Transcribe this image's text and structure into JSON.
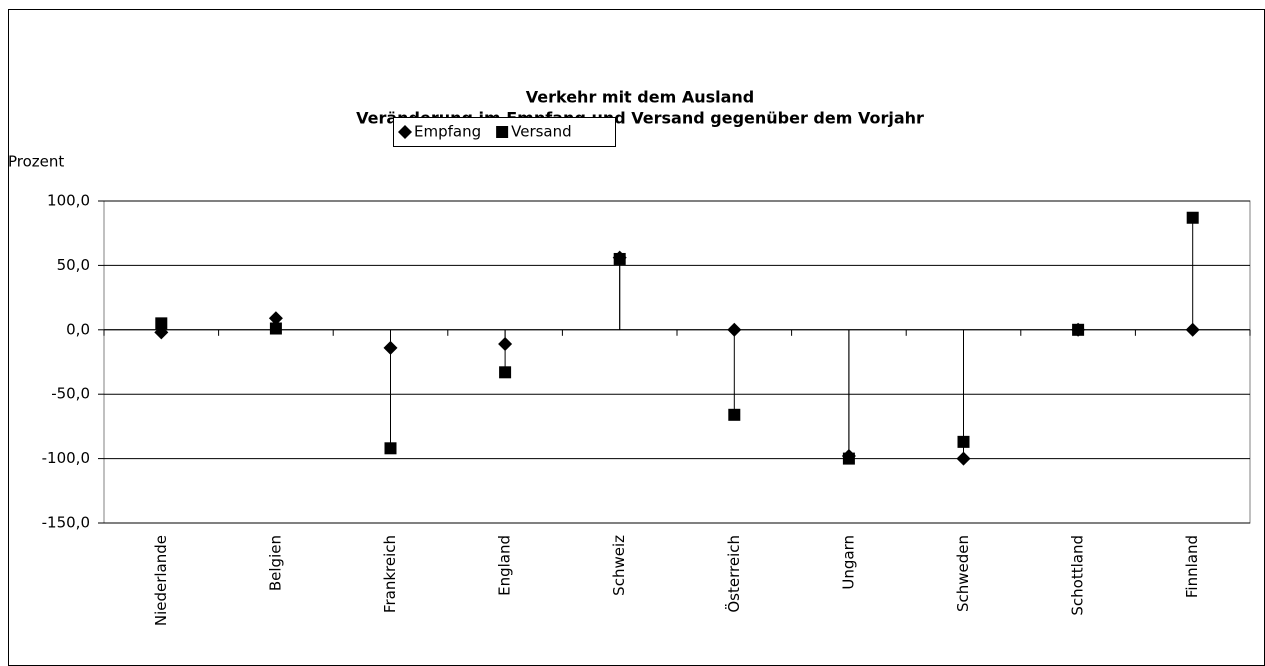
{
  "chart_data": {
    "type": "dot",
    "title": "Verkehr mit dem Ausland",
    "subtitle": "Veränderung im Empfang und Versand gegenüber dem Vorjahr",
    "y_label": "Prozent",
    "categories": [
      "Niederlande",
      "Belgien",
      "Frankreich",
      "England",
      "Schweiz",
      "Österreich",
      "Ungarn",
      "Schweden",
      "Schottland",
      "Finnland"
    ],
    "series": [
      {
        "name": "Empfang",
        "color": "#000000",
        "marker": "diamond",
        "values": [
          -2,
          9,
          -14,
          -11,
          56,
          0,
          -98,
          -100,
          0,
          0
        ]
      },
      {
        "name": "Versand",
        "color": "#000000",
        "marker": "square",
        "values": [
          5,
          1,
          -92,
          -33,
          55,
          -66,
          -100,
          -87,
          0,
          87
        ]
      }
    ],
    "ylim": [
      -150,
      100
    ],
    "yticks": [
      {
        "value": -150,
        "label": "-150,0"
      },
      {
        "value": -100,
        "label": "-100,0"
      },
      {
        "value": -50,
        "label": "-50,0"
      },
      {
        "value": 0,
        "label": "0,0"
      },
      {
        "value": 50,
        "label": "50,0"
      },
      {
        "value": 100,
        "label": "100,0"
      }
    ],
    "grid": true,
    "legend": "top"
  }
}
